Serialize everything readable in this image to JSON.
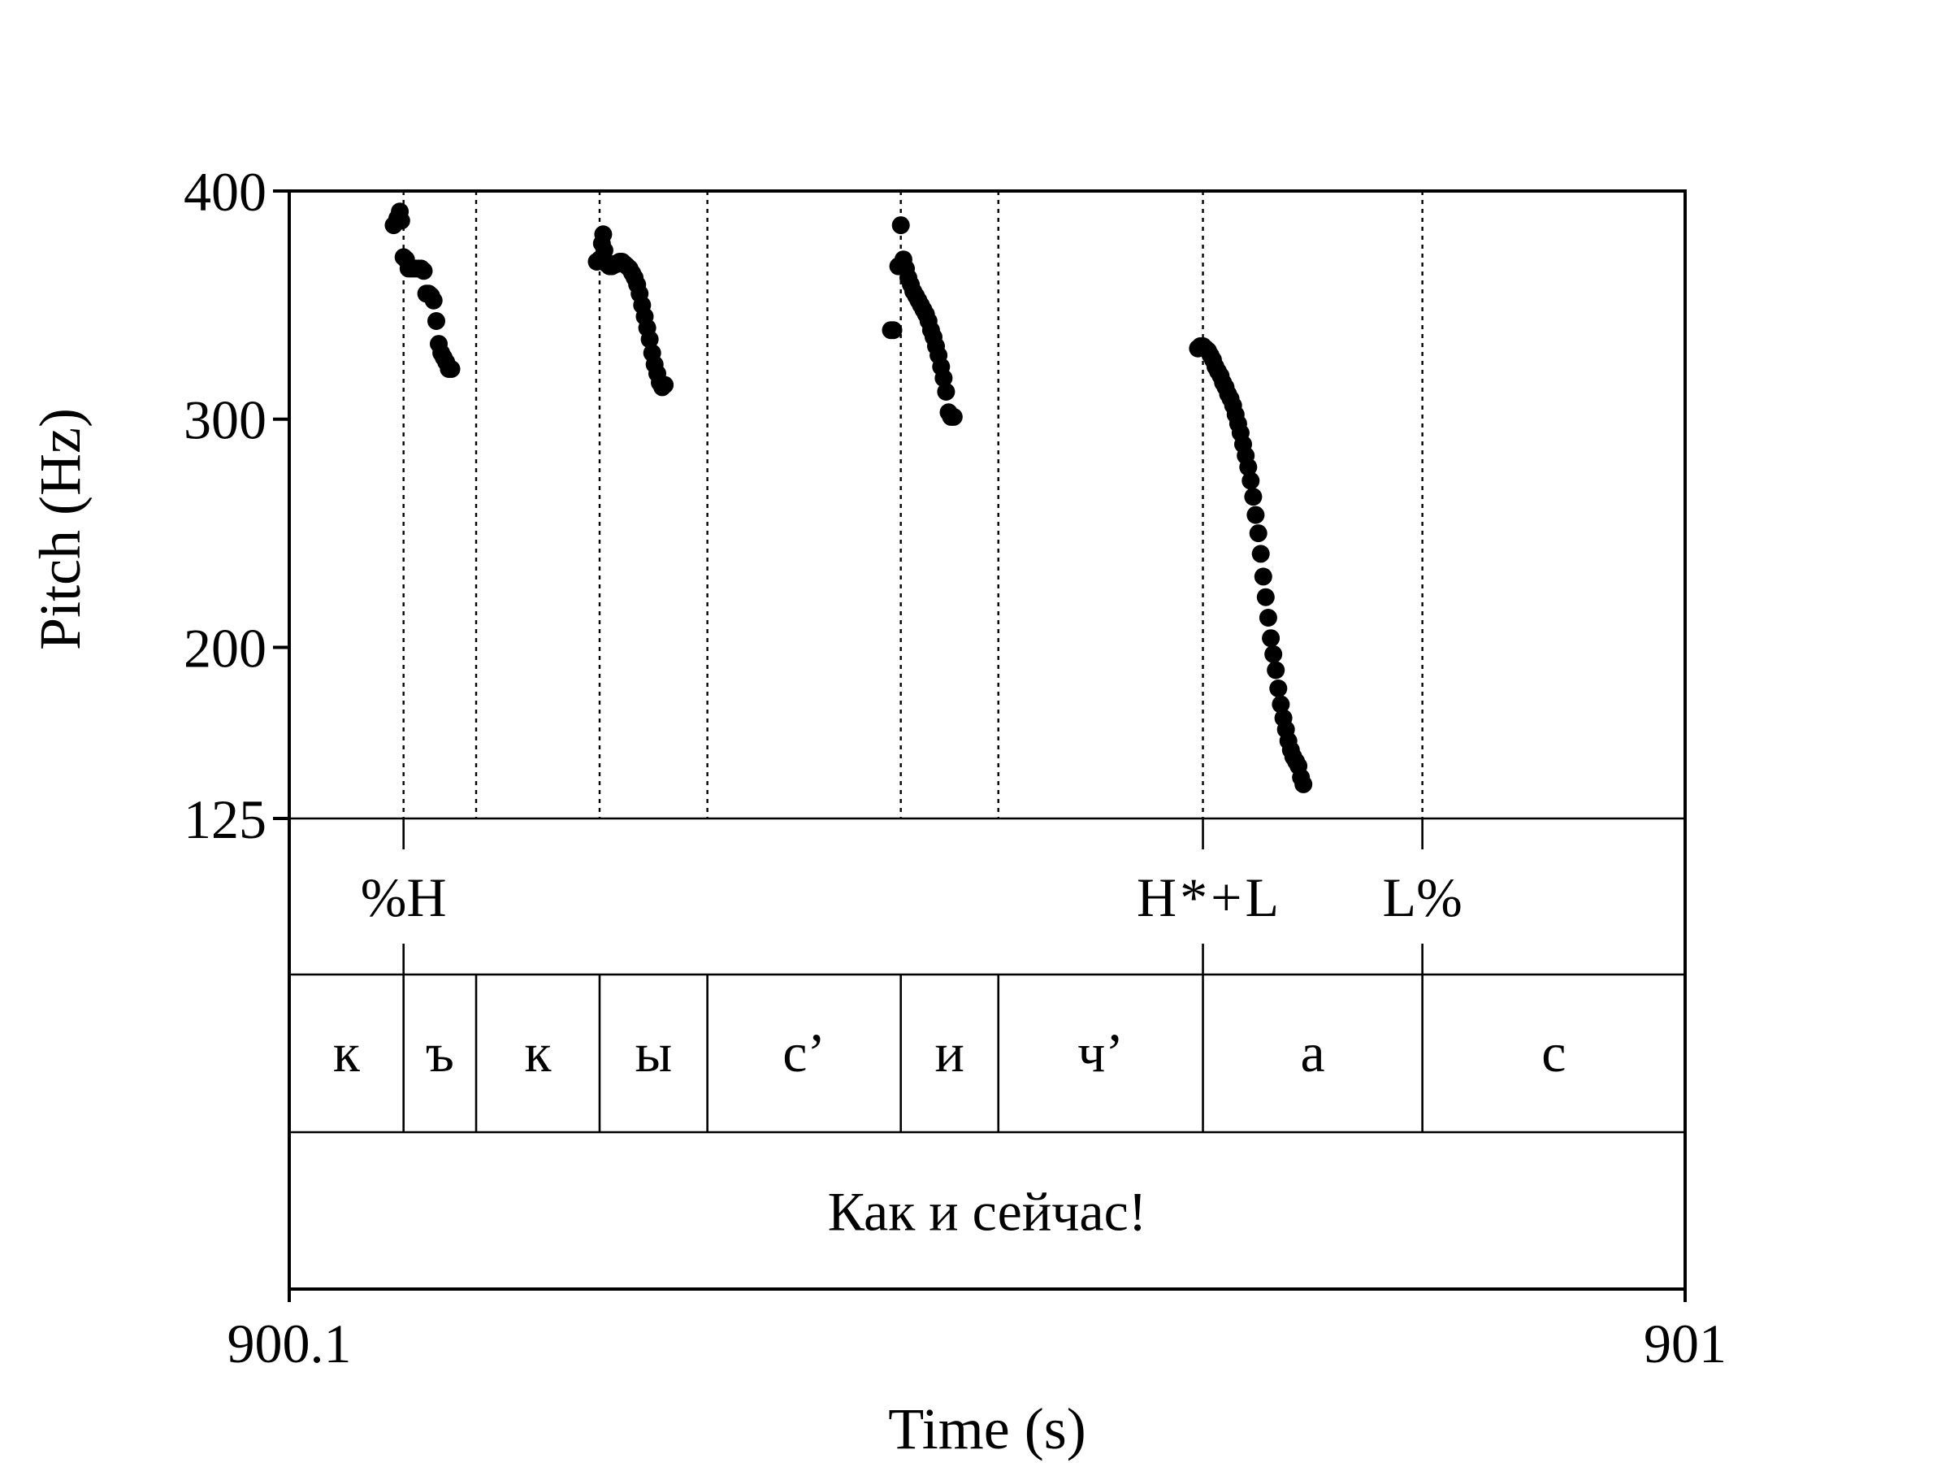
{
  "chart_data": {
    "type": "scatter",
    "title": "",
    "xlabel": "Time (s)",
    "ylabel": "Pitch (Hz)",
    "xlim": [
      900.1,
      901
    ],
    "ylim": [
      125,
      400
    ],
    "x_ticks": [
      "900.1",
      "901"
    ],
    "y_ticks": [
      "125",
      "200",
      "300",
      "400"
    ],
    "grid": false,
    "boundaries": [
      900.1737,
      900.2205,
      900.3001,
      900.3696,
      900.4943,
      900.5572,
      900.6891,
      900.8306
    ],
    "tones": [
      {
        "label": "%H",
        "t": 900.1737
      },
      {
        "label": "H*+L",
        "t": 900.6891
      },
      {
        "label": "L%",
        "t": 900.8306
      }
    ],
    "segments": [
      {
        "label": "к",
        "start": 900.1,
        "end": 900.1737
      },
      {
        "label": "ъ",
        "start": 900.1737,
        "end": 900.2205
      },
      {
        "label": "к",
        "start": 900.2205,
        "end": 900.3001
      },
      {
        "label": "ы",
        "start": 900.3001,
        "end": 900.3696
      },
      {
        "label": "с’",
        "start": 900.3696,
        "end": 900.4943
      },
      {
        "label": "и",
        "start": 900.4943,
        "end": 900.5572
      },
      {
        "label": "ч’",
        "start": 900.5572,
        "end": 900.6891
      },
      {
        "label": "а",
        "start": 900.6891,
        "end": 900.8306
      },
      {
        "label": "с",
        "start": 900.8306,
        "end": 901
      }
    ],
    "utterance": "Как и сейчас!",
    "series": [
      {
        "points": [
          [
            900.1673,
            385
          ],
          [
            900.1697,
            388
          ],
          [
            900.1713,
            391
          ],
          [
            900.1722,
            387
          ],
          [
            900.1737,
            371
          ],
          [
            900.1753,
            370
          ],
          [
            900.1769,
            366
          ],
          [
            900.1786,
            366
          ],
          [
            900.1802,
            366
          ],
          [
            900.1818,
            366
          ],
          [
            900.1834,
            366
          ],
          [
            900.185,
            366
          ],
          [
            900.1867,
            365
          ],
          [
            900.1883,
            355
          ],
          [
            900.1899,
            355
          ],
          [
            900.1915,
            354
          ],
          [
            900.1931,
            352
          ],
          [
            900.1948,
            343
          ],
          [
            900.1964,
            333
          ],
          [
            900.198,
            329
          ],
          [
            900.1996,
            327
          ],
          [
            900.2012,
            325
          ],
          [
            900.2029,
            322
          ],
          [
            900.2045,
            322
          ]
        ]
      },
      {
        "points": [
          [
            900.2983,
            369
          ],
          [
            900.3001,
            370
          ],
          [
            900.3016,
            377
          ],
          [
            900.3024,
            381
          ],
          [
            900.3032,
            374
          ],
          [
            900.3049,
            368
          ],
          [
            900.3065,
            367
          ],
          [
            900.3081,
            367
          ],
          [
            900.3097,
            368
          ],
          [
            900.3113,
            368
          ],
          [
            900.313,
            369
          ],
          [
            900.3146,
            369
          ],
          [
            900.3162,
            368
          ],
          [
            900.3178,
            367
          ],
          [
            900.3194,
            366
          ],
          [
            900.3211,
            364
          ],
          [
            900.3227,
            362
          ],
          [
            900.3243,
            359
          ],
          [
            900.3259,
            355
          ],
          [
            900.3275,
            350
          ],
          [
            900.3292,
            345
          ],
          [
            900.3308,
            340
          ],
          [
            900.3324,
            335
          ],
          [
            900.334,
            329
          ],
          [
            900.3356,
            324
          ],
          [
            900.3373,
            320
          ],
          [
            900.3389,
            316
          ],
          [
            900.3405,
            314
          ],
          [
            900.3421,
            315
          ]
        ]
      },
      {
        "points": [
          [
            900.4879,
            339
          ],
          [
            900.4895,
            339
          ],
          [
            900.4927,
            367
          ],
          [
            900.4943,
            385
          ],
          [
            900.496,
            370
          ],
          [
            900.4976,
            366
          ],
          [
            900.4992,
            362
          ],
          [
            900.5008,
            359
          ],
          [
            900.5024,
            356
          ],
          [
            900.5041,
            354
          ],
          [
            900.5057,
            352
          ],
          [
            900.5073,
            350
          ],
          [
            900.5089,
            348
          ],
          [
            900.5105,
            346
          ],
          [
            900.5122,
            343
          ],
          [
            900.5138,
            339
          ],
          [
            900.5154,
            336
          ],
          [
            900.517,
            332
          ],
          [
            900.5186,
            328
          ],
          [
            900.5203,
            323
          ],
          [
            900.5219,
            318
          ],
          [
            900.5235,
            312
          ],
          [
            900.5251,
            303
          ],
          [
            900.5267,
            301
          ],
          [
            900.5284,
            301
          ]
        ]
      },
      {
        "points": [
          [
            900.6859,
            331
          ],
          [
            900.6875,
            332
          ],
          [
            900.6891,
            332
          ],
          [
            900.6907,
            331
          ],
          [
            900.6924,
            330
          ],
          [
            900.694,
            328
          ],
          [
            900.6956,
            326
          ],
          [
            900.6972,
            323
          ],
          [
            900.6988,
            321
          ],
          [
            900.7005,
            319
          ],
          [
            900.7021,
            316
          ],
          [
            900.7037,
            314
          ],
          [
            900.7053,
            311
          ],
          [
            900.7069,
            309
          ],
          [
            900.7086,
            306
          ],
          [
            900.7102,
            302
          ],
          [
            900.7118,
            298
          ],
          [
            900.7134,
            294
          ],
          [
            900.715,
            289
          ],
          [
            900.7167,
            284
          ],
          [
            900.7183,
            279
          ],
          [
            900.7199,
            273
          ],
          [
            900.7215,
            266
          ],
          [
            900.7231,
            258
          ],
          [
            900.7248,
            250
          ],
          [
            900.7264,
            241
          ],
          [
            900.728,
            231
          ],
          [
            900.7296,
            222
          ],
          [
            900.7312,
            213
          ],
          [
            900.7329,
            204
          ],
          [
            900.7345,
            197
          ],
          [
            900.7361,
            190
          ],
          [
            900.7377,
            182
          ],
          [
            900.7393,
            175
          ],
          [
            900.741,
            169
          ],
          [
            900.7426,
            164
          ],
          [
            900.7442,
            159
          ],
          [
            900.7458,
            155
          ],
          [
            900.7474,
            152
          ],
          [
            900.7491,
            150
          ],
          [
            900.7507,
            148
          ],
          [
            900.7523,
            143
          ],
          [
            900.7539,
            140
          ]
        ]
      }
    ]
  }
}
